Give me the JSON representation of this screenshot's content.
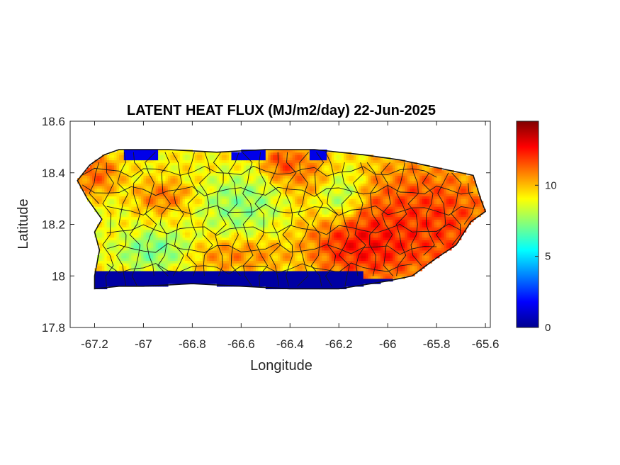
{
  "chart_data": {
    "type": "heatmap",
    "title": "LATENT HEAT FLUX (MJ/m2/day) 22-Jun-2025",
    "xlabel": "Longitude",
    "ylabel": "Latitude",
    "xlim": [
      -67.3,
      -65.58
    ],
    "ylim": [
      17.8,
      18.6
    ],
    "xticks": [
      -67.2,
      -67,
      -66.8,
      -66.6,
      -66.4,
      -66.2,
      -66,
      -65.8,
      -65.6
    ],
    "xtick_labels": [
      "-67.2",
      "-67",
      "-66.8",
      "-66.6",
      "-66.4",
      "-66.2",
      "-66",
      "-65.8",
      "-65.6"
    ],
    "yticks": [
      17.8,
      18,
      18.2,
      18.4,
      18.6
    ],
    "ytick_labels": [
      "17.8",
      "18",
      "18.2",
      "18.4",
      "18.6"
    ],
    "colormap": "jet",
    "colorbar": {
      "range": [
        0,
        14.5
      ],
      "ticks": [
        0,
        5,
        10
      ],
      "tick_labels": [
        "0",
        "5",
        "10"
      ]
    },
    "region_outline": [
      [
        -67.27,
        18.37
      ],
      [
        -67.22,
        18.43
      ],
      [
        -67.16,
        18.47
      ],
      [
        -67.1,
        18.49
      ],
      [
        -66.9,
        18.49
      ],
      [
        -66.7,
        18.48
      ],
      [
        -66.5,
        18.49
      ],
      [
        -66.3,
        18.49
      ],
      [
        -66.1,
        18.47
      ],
      [
        -65.95,
        18.45
      ],
      [
        -65.85,
        18.43
      ],
      [
        -65.75,
        18.41
      ],
      [
        -65.65,
        18.39
      ],
      [
        -65.62,
        18.3
      ],
      [
        -65.6,
        18.25
      ],
      [
        -65.66,
        18.21
      ],
      [
        -65.72,
        18.12
      ],
      [
        -65.8,
        18.07
      ],
      [
        -65.9,
        18.0
      ],
      [
        -66.0,
        17.98
      ],
      [
        -66.2,
        17.95
      ],
      [
        -66.4,
        17.95
      ],
      [
        -66.6,
        17.96
      ],
      [
        -66.8,
        17.97
      ],
      [
        -67.0,
        17.96
      ],
      [
        -67.1,
        17.96
      ],
      [
        -67.2,
        17.95
      ],
      [
        -67.2,
        18.0
      ],
      [
        -67.18,
        18.1
      ],
      [
        -67.2,
        18.17
      ],
      [
        -67.17,
        18.22
      ],
      [
        -67.23,
        18.3
      ],
      [
        -67.27,
        18.37
      ]
    ],
    "field_components": [
      {
        "lon": -65.85,
        "lat": 18.2,
        "sx": 0.28,
        "sy": 0.2,
        "value": 13.5
      },
      {
        "lon": -66.12,
        "lat": 18.12,
        "sx": 0.16,
        "sy": 0.1,
        "value": 14.0
      },
      {
        "lon": -66.3,
        "lat": 18.4,
        "sx": 0.12,
        "sy": 0.08,
        "value": 11.8
      },
      {
        "lon": -66.43,
        "lat": 18.44,
        "sx": 0.06,
        "sy": 0.05,
        "value": 13.0
      },
      {
        "lon": -67.2,
        "lat": 18.4,
        "sx": 0.08,
        "sy": 0.07,
        "value": 12.5
      },
      {
        "lon": -66.92,
        "lat": 18.31,
        "sx": 0.09,
        "sy": 0.05,
        "value": 12.0
      },
      {
        "lon": -66.62,
        "lat": 18.08,
        "sx": 0.18,
        "sy": 0.05,
        "value": 11.5
      },
      {
        "lon": -66.6,
        "lat": 18.28,
        "sx": 0.13,
        "sy": 0.09,
        "value": 6.5
      },
      {
        "lon": -66.2,
        "lat": 18.33,
        "sx": 0.08,
        "sy": 0.1,
        "value": 6.0
      },
      {
        "lon": -66.95,
        "lat": 18.1,
        "sx": 0.13,
        "sy": 0.06,
        "value": 6.0
      },
      {
        "lon": -67.13,
        "lat": 18.2,
        "sx": 0.06,
        "sy": 0.08,
        "value": 8.8
      }
    ],
    "field_base_value": 9.2,
    "south_coast_low_band": {
      "lat_high": 18.02,
      "value": 0.5
    },
    "north_coast_low_segments": [
      [
        -67.08,
        -66.94
      ],
      [
        -66.64,
        -66.5
      ],
      [
        -66.32,
        -66.25
      ]
    ]
  }
}
